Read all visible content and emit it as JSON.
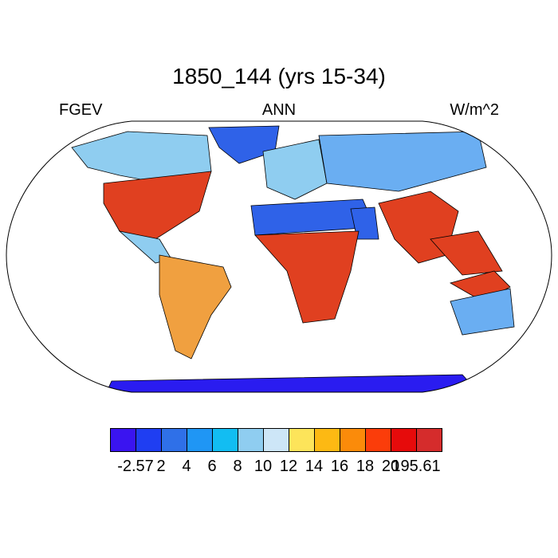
{
  "map": {
    "title": "1850_144 (yrs 15-34)",
    "variable": "FGEV",
    "period": "ANN",
    "units": "W/m^2",
    "projection": "Robinson",
    "colorbar": {
      "colors": [
        "#3a14f0",
        "#1f3ef2",
        "#2f70e8",
        "#1f96f5",
        "#12bdf2",
        "#8fcdf0",
        "#cde6f7",
        "#fde45a",
        "#fdb913",
        "#fb8b0a",
        "#fb3d0a",
        "#e60b0b",
        "#d52c2c"
      ],
      "labels": [
        "-2.57",
        "2",
        "4",
        "6",
        "8",
        "10",
        "12",
        "14",
        "16",
        "18",
        "20",
        "195.61"
      ]
    },
    "regions": {
      "antarctica": "deep-blue",
      "greenland": "blue",
      "sahara": "blue",
      "arabia": "blue",
      "eastern-us": "red",
      "amazon": "mixed",
      "central-africa": "red",
      "india": "red",
      "southeast-asia": "red",
      "siberia": "light-blue",
      "australia-north": "red",
      "australia-interior": "light-blue"
    }
  }
}
